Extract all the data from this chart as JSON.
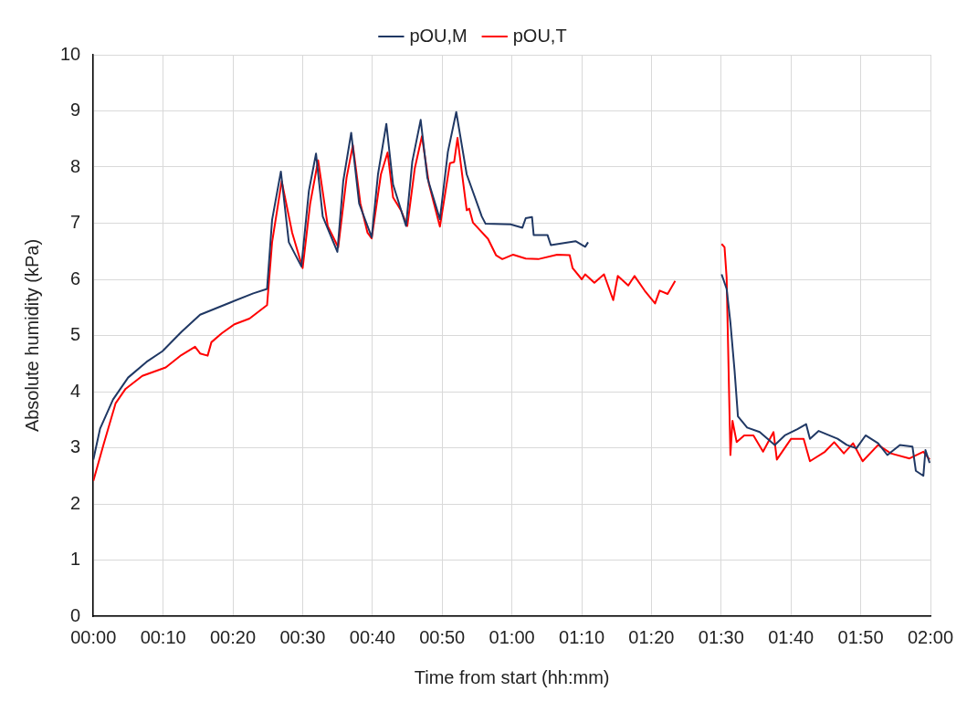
{
  "chart_data": {
    "type": "line",
    "xlabel": "Time from start (hh:mm)",
    "ylabel": "Absolute humidity (kPa)",
    "xlim": [
      0,
      2
    ],
    "xticks": [
      {
        "value": 0,
        "label": "00:00"
      },
      {
        "value": 0.1667,
        "label": "00:10"
      },
      {
        "value": 0.3333,
        "label": "00:20"
      },
      {
        "value": 0.5,
        "label": "00:30"
      },
      {
        "value": 0.6667,
        "label": "00:40"
      },
      {
        "value": 0.8333,
        "label": "00:50"
      },
      {
        "value": 1,
        "label": "01:00"
      },
      {
        "value": 1.1667,
        "label": "01:10"
      },
      {
        "value": 1.3333,
        "label": "01:20"
      },
      {
        "value": 1.5,
        "label": "01:30"
      },
      {
        "value": 1.6667,
        "label": "01:40"
      },
      {
        "value": 1.8333,
        "label": "01:50"
      },
      {
        "value": 2,
        "label": "02:00"
      }
    ],
    "ylim": [
      0,
      10
    ],
    "yticks": [
      0,
      1,
      2,
      3,
      4,
      5,
      6,
      7,
      8,
      9,
      10
    ],
    "grid": true,
    "legend": "top",
    "marker": "none",
    "line_style": "solid",
    "series": [
      {
        "name": "pOU,M",
        "color": "#203864",
        "x": [
          0,
          0.016,
          0.047,
          0.083,
          0.127,
          0.165,
          0.21,
          0.255,
          0.328,
          0.382,
          0.415,
          0.427,
          0.448,
          0.467,
          0.497,
          0.515,
          0.532,
          0.548,
          0.583,
          0.597,
          0.616,
          0.635,
          0.665,
          0.68,
          0.7,
          0.716,
          0.747,
          0.762,
          0.782,
          0.798,
          0.828,
          0.847,
          0.867,
          0.892,
          0.928,
          0.937,
          0.997,
          1.025,
          1.033,
          1.048,
          1.052,
          1.085,
          1.093,
          1.152,
          1.175,
          1.182,
          1.3,
          1.501,
          1.513,
          1.522,
          1.532,
          1.54,
          1.562,
          1.592,
          1.628,
          1.652,
          1.682,
          1.703,
          1.712,
          1.733,
          1.778,
          1.8,
          1.823,
          1.845,
          1.875,
          1.897,
          1.927,
          1.957,
          1.965,
          1.983,
          1.988,
          1.998
        ],
        "values": [
          2.79,
          3.34,
          3.86,
          4.25,
          4.53,
          4.72,
          5.06,
          5.37,
          5.59,
          5.75,
          5.83,
          7.06,
          7.92,
          6.66,
          6.23,
          7.58,
          8.24,
          7.12,
          6.49,
          7.75,
          8.61,
          7.35,
          6.75,
          7.87,
          8.77,
          7.69,
          6.95,
          8.1,
          8.84,
          7.81,
          7.07,
          8.27,
          8.98,
          7.87,
          7.12,
          6.99,
          6.98,
          6.92,
          7.09,
          7.11,
          6.79,
          6.79,
          6.61,
          6.68,
          6.58,
          6.66,
          null,
          6.09,
          5.83,
          5.23,
          4.37,
          3.56,
          3.36,
          3.28,
          3.05,
          3.22,
          3.33,
          3.42,
          3.16,
          3.3,
          3.16,
          3.05,
          2.99,
          3.22,
          3.08,
          2.87,
          3.05,
          3.02,
          2.59,
          2.5,
          2.96,
          2.73
        ]
      },
      {
        "name": "pOU,T",
        "color": "#ff0000",
        "x": [
          0,
          0.024,
          0.053,
          0.077,
          0.117,
          0.173,
          0.21,
          0.243,
          0.255,
          0.273,
          0.282,
          0.307,
          0.337,
          0.373,
          0.415,
          0.427,
          0.45,
          0.475,
          0.5,
          0.518,
          0.537,
          0.56,
          0.585,
          0.605,
          0.62,
          0.638,
          0.655,
          0.665,
          0.687,
          0.703,
          0.716,
          0.735,
          0.75,
          0.768,
          0.785,
          0.802,
          0.828,
          0.852,
          0.862,
          0.87,
          0.892,
          0.898,
          0.907,
          0.943,
          0.962,
          0.977,
          1.003,
          1.033,
          1.063,
          1.108,
          1.138,
          1.145,
          1.167,
          1.175,
          1.197,
          1.22,
          1.242,
          1.253,
          1.278,
          1.293,
          1.317,
          1.342,
          1.353,
          1.372,
          1.39,
          1.45,
          1.501,
          1.508,
          1.513,
          1.522,
          1.527,
          1.537,
          1.555,
          1.577,
          1.6,
          1.625,
          1.633,
          1.667,
          1.697,
          1.712,
          1.748,
          1.77,
          1.793,
          1.815,
          1.838,
          1.875,
          1.905,
          1.95,
          1.983,
          1.998
        ],
        "values": [
          2.41,
          3.05,
          3.79,
          4.05,
          4.28,
          4.43,
          4.65,
          4.8,
          4.68,
          4.64,
          4.88,
          5.04,
          5.2,
          5.3,
          5.54,
          6.66,
          7.75,
          6.83,
          6.2,
          7.35,
          8.12,
          6.95,
          6.57,
          7.81,
          8.39,
          7.35,
          6.83,
          6.73,
          7.87,
          8.26,
          7.46,
          7.23,
          6.95,
          7.98,
          8.55,
          7.69,
          6.94,
          8.07,
          8.09,
          8.52,
          7.23,
          7.26,
          7.01,
          6.72,
          6.43,
          6.36,
          6.44,
          6.37,
          6.36,
          6.44,
          6.43,
          6.2,
          6.0,
          6.09,
          5.94,
          6.09,
          5.63,
          6.06,
          5.89,
          6.06,
          5.8,
          5.57,
          5.8,
          5.74,
          5.97,
          null,
          6.63,
          6.57,
          6.03,
          2.87,
          3.48,
          3.1,
          3.22,
          3.22,
          2.93,
          3.28,
          2.79,
          3.16,
          3.16,
          2.76,
          2.93,
          3.1,
          2.9,
          3.08,
          2.76,
          3.05,
          2.9,
          2.81,
          2.93,
          2.79
        ]
      }
    ]
  }
}
